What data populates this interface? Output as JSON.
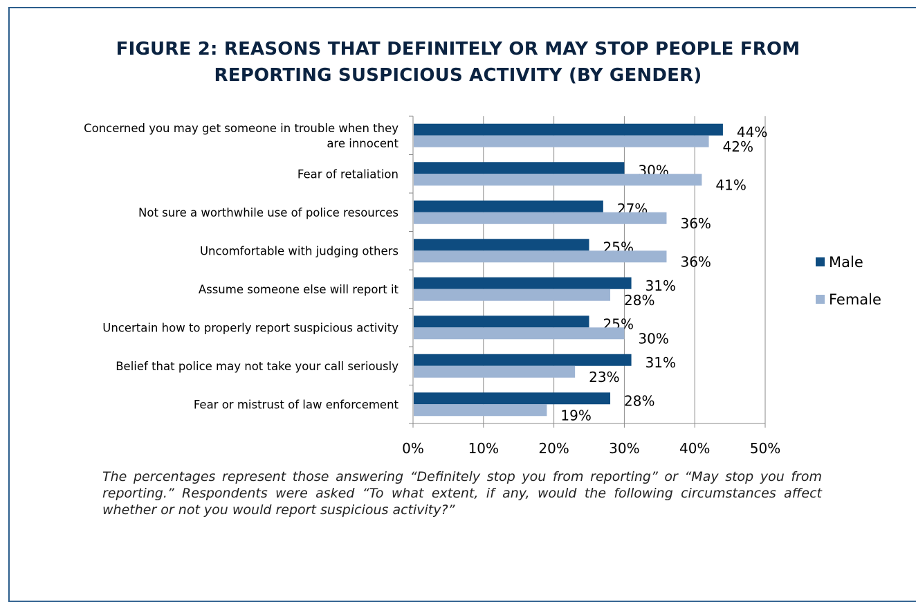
{
  "chart_data": {
    "type": "bar",
    "orientation": "horizontal",
    "title": "FIGURE 2: REASONS THAT DEFINITELY OR MAY STOP PEOPLE FROM REPORTING SUSPICIOUS ACTIVITY (BY GENDER)",
    "title_lines": [
      "FIGURE 2: REASONS THAT DEFINITELY OR MAY STOP PEOPLE FROM",
      "REPORTING SUSPICIOUS ACTIVITY (BY GENDER)"
    ],
    "categories": [
      "Concerned you may get someone in trouble when they are innocent",
      "Fear of retaliation",
      "Not sure a worthwhile use of police resources",
      "Uncomfortable with judging others",
      "Assume someone else will report it",
      "Uncertain how to properly report suspicious activity",
      "Belief that police may not take your call seriously",
      "Fear or mistrust of law enforcement"
    ],
    "category_lines": [
      [
        "Concerned you may get someone in trouble when they",
        "are innocent"
      ],
      [
        "Fear of retaliation"
      ],
      [
        "Not sure a worthwhile use of police resources"
      ],
      [
        "Uncomfortable with judging others"
      ],
      [
        "Assume someone else will report it"
      ],
      [
        "Uncertain how to properly report suspicious activity"
      ],
      [
        "Belief that police may not take your call seriously"
      ],
      [
        "Fear or mistrust of law enforcement"
      ]
    ],
    "series": [
      {
        "name": "Male",
        "color": "#0e4c80",
        "values": [
          44,
          30,
          27,
          25,
          31,
          25,
          31,
          28
        ],
        "labels": [
          "44%",
          "30%",
          "27%",
          "25%",
          "31%",
          "25%",
          "31%",
          "28%"
        ]
      },
      {
        "name": "Female",
        "color": "#9db4d3",
        "values": [
          42,
          41,
          36,
          36,
          28,
          30,
          23,
          19
        ],
        "labels": [
          "42%",
          "41%",
          "36%",
          "36%",
          "28%",
          "30%",
          "23%",
          "19%"
        ]
      }
    ],
    "xlim": [
      0,
      50
    ],
    "xticks": [
      "0%",
      "10%",
      "20%",
      "30%",
      "40%",
      "50%"
    ],
    "grid": true,
    "legend": "right",
    "caption": "The percentages represent those answering “Definitely stop you from reporting” or “May stop you from reporting.”  Respondents were asked “To what extent, if any, would the following circumstances affect whether or not you would report suspicious activity?”"
  }
}
